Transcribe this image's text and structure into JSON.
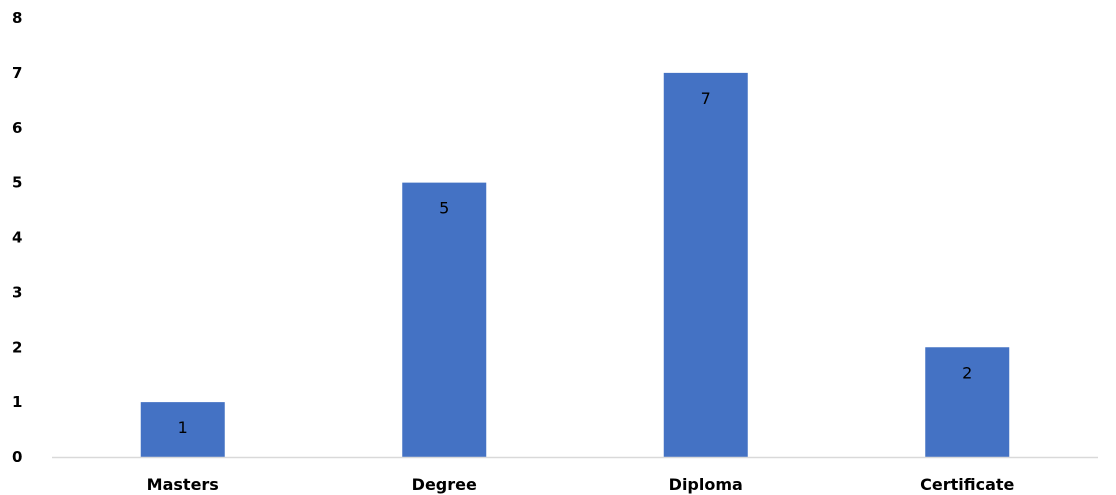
{
  "chart_data": {
    "type": "bar",
    "title": "",
    "xlabel": "",
    "ylabel": "",
    "categories": [
      "Masters",
      "Degree",
      "Diploma",
      "Certificate"
    ],
    "values": [
      1,
      5,
      7,
      2
    ],
    "data_labels": [
      "1",
      "5",
      "7",
      "2"
    ],
    "ylim": [
      0,
      8
    ],
    "yticks": [
      "0",
      "1",
      "2",
      "3",
      "4",
      "5",
      "6",
      "7",
      "8"
    ],
    "grid": false,
    "legend": "none",
    "bar_color": "#4472C4",
    "axis_color": "#D9D9D9"
  }
}
